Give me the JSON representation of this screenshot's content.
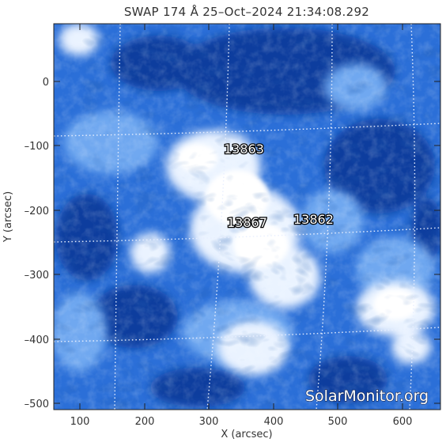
{
  "title": "SWAP 174 Å 25–Oct–2024 21:34:08.292",
  "x_axis": {
    "label": "X (arcsec)",
    "range": [
      60,
      660
    ],
    "ticks": [
      "100",
      "200",
      "300",
      "400",
      "500",
      "600"
    ]
  },
  "y_axis": {
    "label": "Y (arcsec)",
    "range": [
      -510,
      90
    ],
    "ticks": [
      "0",
      "–100",
      "–200",
      "–300",
      "–400",
      "–500"
    ]
  },
  "active_regions": {
    "ar1": "13863",
    "ar2": "13867",
    "ar3": "13862"
  },
  "watermark": "SolarMonitor.org",
  "colors": {
    "deep": "#0a3aa6",
    "mid": "#2a72e0",
    "bright": "#ffffff",
    "grid": "#e8efff"
  }
}
